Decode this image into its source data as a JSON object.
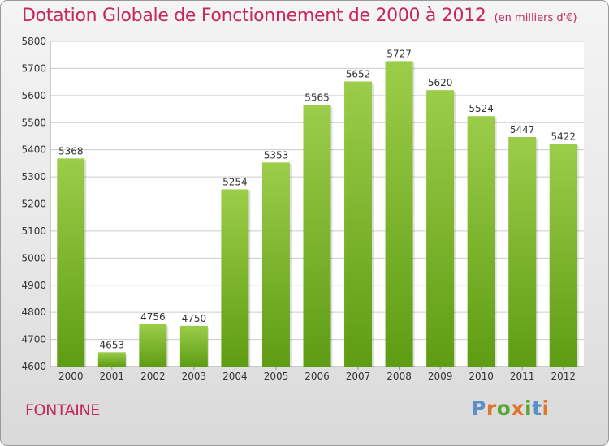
{
  "title": "Dotation Globale de Fonctionnement de 2000 à 2012",
  "subtitle": "(en milliers d'€)",
  "commune": "FONTAINE",
  "logo": {
    "letters": [
      "P",
      "r",
      "o",
      "x",
      "i",
      "t",
      "i"
    ],
    "colors": [
      "#5c8fc7",
      "#e0752b",
      "#58a737",
      "#e0752b",
      "#58a737",
      "#5c8fc7",
      "#e0752b"
    ]
  },
  "colors": {
    "accent": "#c5285c",
    "bar_light": "#9ccd4a",
    "bar_dark": "#5e9c13",
    "grid": "#cccccc"
  },
  "chart_data": {
    "type": "bar",
    "categories": [
      "2000",
      "2001",
      "2002",
      "2003",
      "2004",
      "2005",
      "2006",
      "2007",
      "2008",
      "2009",
      "2010",
      "2011",
      "2012"
    ],
    "values": [
      5368,
      4653,
      4756,
      4750,
      5254,
      5353,
      5565,
      5652,
      5727,
      5620,
      5524,
      5447,
      5422
    ],
    "data_labels": [
      "5368",
      "4653",
      "4756",
      "4750",
      "5254",
      "5353",
      "5565",
      "5652",
      "5727",
      "5620",
      "5524",
      "5447",
      "5422"
    ],
    "ylim": [
      4600,
      5800
    ],
    "yticks": [
      "4600",
      "4700",
      "4800",
      "4900",
      "5000",
      "5100",
      "5200",
      "5300",
      "5400",
      "5500",
      "5600",
      "5700",
      "5800"
    ],
    "grid": true,
    "xlabel": "",
    "ylabel": ""
  }
}
